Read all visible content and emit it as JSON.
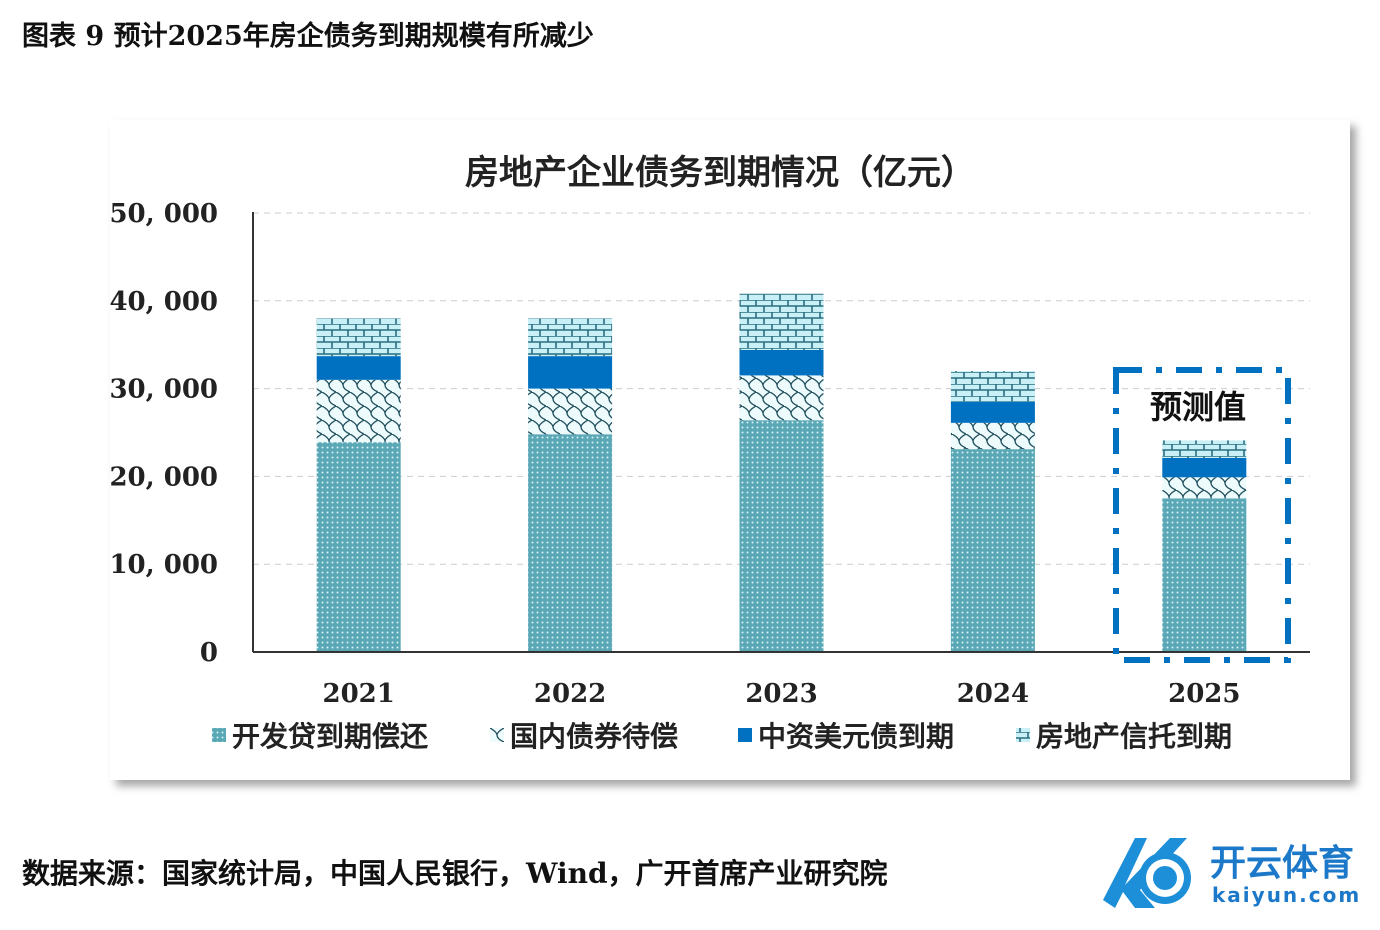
{
  "caption": "图表 9 预计2025年房企债务到期规模有所减少",
  "source": "数据来源：国家统计局，中国人民银行，Wind，广开首席产业研究院",
  "logo": {
    "name": "开云体育",
    "domain": "kaiyun.com"
  },
  "chart_data": {
    "type": "bar",
    "stacked": true,
    "title": "房地产企业债务到期情况（亿元）",
    "categories": [
      "2021",
      "2022",
      "2023",
      "2024",
      "2025"
    ],
    "ylim": [
      0,
      50000
    ],
    "yticks": [
      0,
      10000,
      20000,
      30000,
      40000,
      50000
    ],
    "ytick_labels": [
      "0",
      "10, 000",
      "20, 000",
      "30, 000",
      "40, 000",
      "50, 000"
    ],
    "grid": true,
    "legend_position": "bottom",
    "annotation": "预测值",
    "series": [
      {
        "name": "开发贷到期偿还",
        "values": [
          23900,
          24800,
          26400,
          23100,
          17500
        ],
        "color": "#5aa7b5"
      },
      {
        "name": "国内债券待偿",
        "values": [
          7100,
          5200,
          5100,
          3000,
          2400
        ],
        "color": "#2a6f80"
      },
      {
        "name": "中资美元债到期",
        "values": [
          2700,
          3700,
          2900,
          2400,
          2200
        ],
        "color": "#0070c0"
      },
      {
        "name": "房地产信托到期",
        "values": [
          4300,
          4300,
          6400,
          3500,
          2000
        ],
        "color": "#2e7d8c"
      }
    ]
  }
}
